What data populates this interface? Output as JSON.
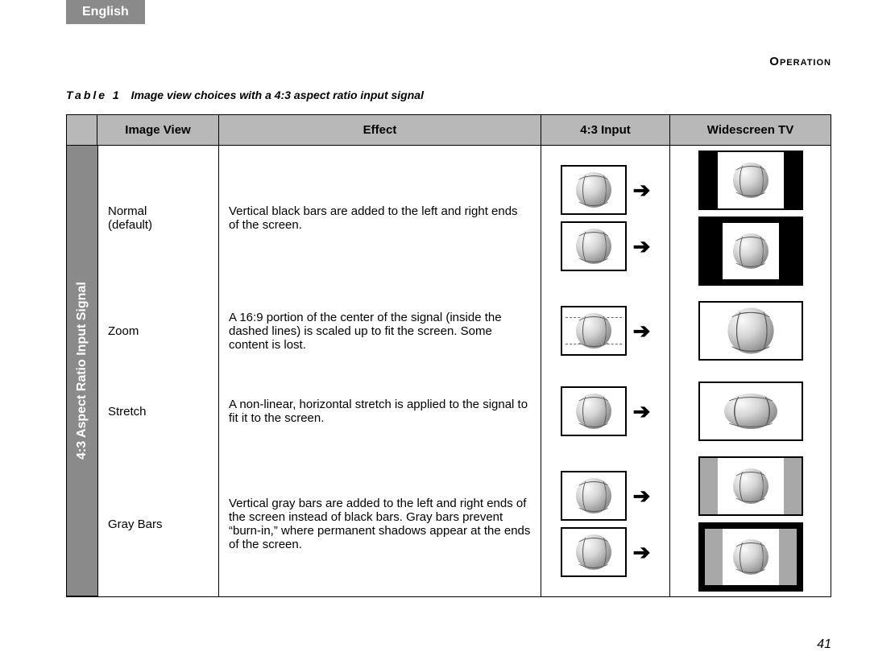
{
  "lang_tab": "English",
  "section": "Operation",
  "caption": {
    "label": "Table 1",
    "text": "Image view choices with a 4:3 aspect ratio input signal"
  },
  "page_number": "41",
  "headers": {
    "image_view": "Image View",
    "effect": "Effect",
    "input": "4:3 Input",
    "widescreen": "Widescreen TV"
  },
  "side_label": "4:3 Aspect Ratio Input Signal",
  "rows": [
    {
      "name": "Normal\n(default)",
      "effect": "Vertical black bars are added to the left and right ends of the screen."
    },
    {
      "name": "Zoom",
      "effect": "A 16:9 portion of the center of the signal (inside the dashed lines) is scaled up to fit the screen. Some content is lost."
    },
    {
      "name": "Stretch",
      "effect": "A non-linear, horizontal stretch is applied to the signal to fit it to the screen."
    },
    {
      "name": "Gray Bars",
      "effect": "Vertical gray bars are added to the left and right ends of the screen instead of black bars. Gray bars prevent “burn-in,” where permanent shadows appear at the ends of the screen."
    }
  ]
}
